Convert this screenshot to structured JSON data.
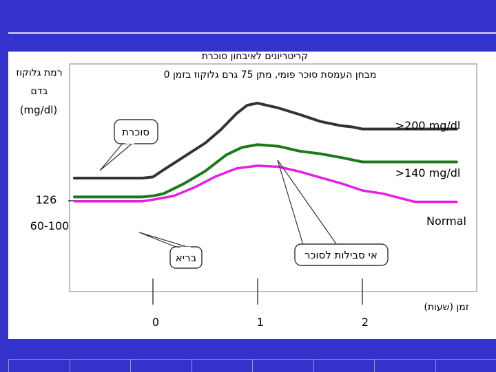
{
  "slide": {
    "colors": {
      "background": "#3333cc",
      "panel": "#ffffff"
    }
  },
  "chart_data": {
    "type": "line",
    "title": "קריטריונים לאיבחון סוכרת",
    "subtitle": "מבחן העמסת סוכר פומי, מתן 75 גרם גלוקוז בזמן 0",
    "ylabel_line1": "רמת גלוקוז",
    "ylabel_line2": "בדם",
    "yunit": "(mg/dl)",
    "xlabel": "זמן (שעות)",
    "x_ticks": [
      {
        "value": 0,
        "label": "0"
      },
      {
        "value": 1,
        "label": "1"
      },
      {
        "value": 2,
        "label": "2"
      }
    ],
    "y_ticks": [
      {
        "value": 126,
        "label": "126"
      },
      {
        "value": 95,
        "label": "60-100"
      }
    ],
    "xlim": [
      -0.8,
      2.9
    ],
    "ylim": [
      10,
      330
    ],
    "grid": false,
    "series": [
      {
        "name": ">200 mg/dl",
        "color": "#333333",
        "x": [
          -0.75,
          -0.1,
          0,
          0.1,
          0.3,
          0.5,
          0.65,
          0.8,
          0.9,
          1.0,
          1.2,
          1.4,
          1.6,
          1.8,
          1.9,
          2.0,
          2.5,
          2.9
        ],
        "y": [
          95,
          95,
          97,
          110,
          135,
          160,
          185,
          215,
          230,
          234,
          225,
          213,
          200,
          192,
          190,
          186,
          186,
          186
        ]
      },
      {
        "name": ">140 mg/dl",
        "color": "#1a7a1a",
        "x": [
          -0.75,
          -0.1,
          0,
          0.1,
          0.3,
          0.5,
          0.7,
          0.85,
          1.0,
          1.2,
          1.4,
          1.6,
          1.8,
          2.0,
          2.5,
          2.9
        ],
        "y": [
          60,
          60,
          62,
          66,
          85,
          108,
          138,
          152,
          157,
          154,
          145,
          140,
          133,
          125,
          125,
          125
        ]
      },
      {
        "name": "Normal",
        "color": "#e61ee6",
        "x": [
          -0.75,
          -0.1,
          0,
          0.2,
          0.4,
          0.6,
          0.8,
          1.0,
          1.2,
          1.4,
          1.6,
          1.8,
          2.0,
          2.2,
          2.5,
          2.9
        ],
        "y": [
          52,
          52,
          55,
          62,
          78,
          98,
          113,
          118,
          116,
          107,
          96,
          85,
          72,
          66,
          51,
          51
        ]
      }
    ],
    "annotations": {
      "diabetes": "סוכרת",
      "healthy": "בריא",
      "glucose_intolerance": "אי סבילות לסוכר"
    }
  }
}
